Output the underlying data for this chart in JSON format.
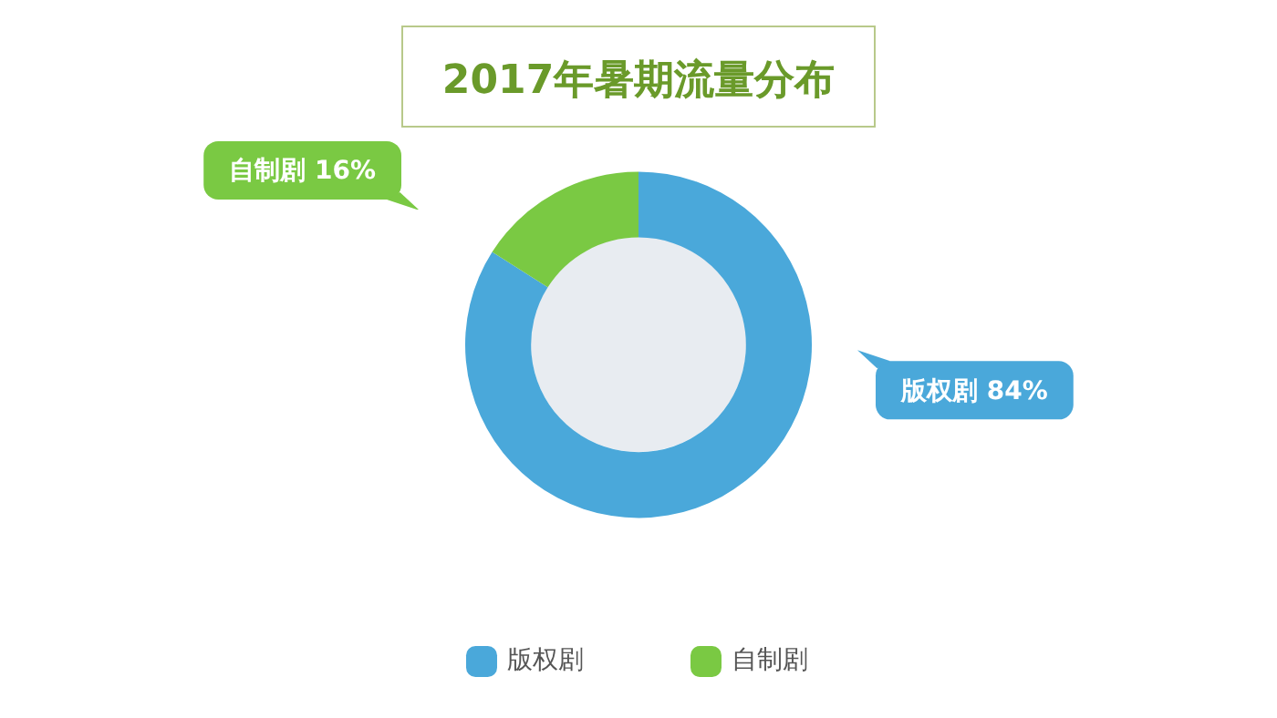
{
  "chart_data": {
    "type": "donut",
    "title": "2017年暑期流量分布",
    "categories": [
      "版权剧",
      "自制剧"
    ],
    "values": [
      84,
      16
    ],
    "colors": [
      "#4aa8da",
      "#7ac943"
    ],
    "value_labels": [
      "84%",
      "16%"
    ],
    "legend": "bottom"
  }
}
